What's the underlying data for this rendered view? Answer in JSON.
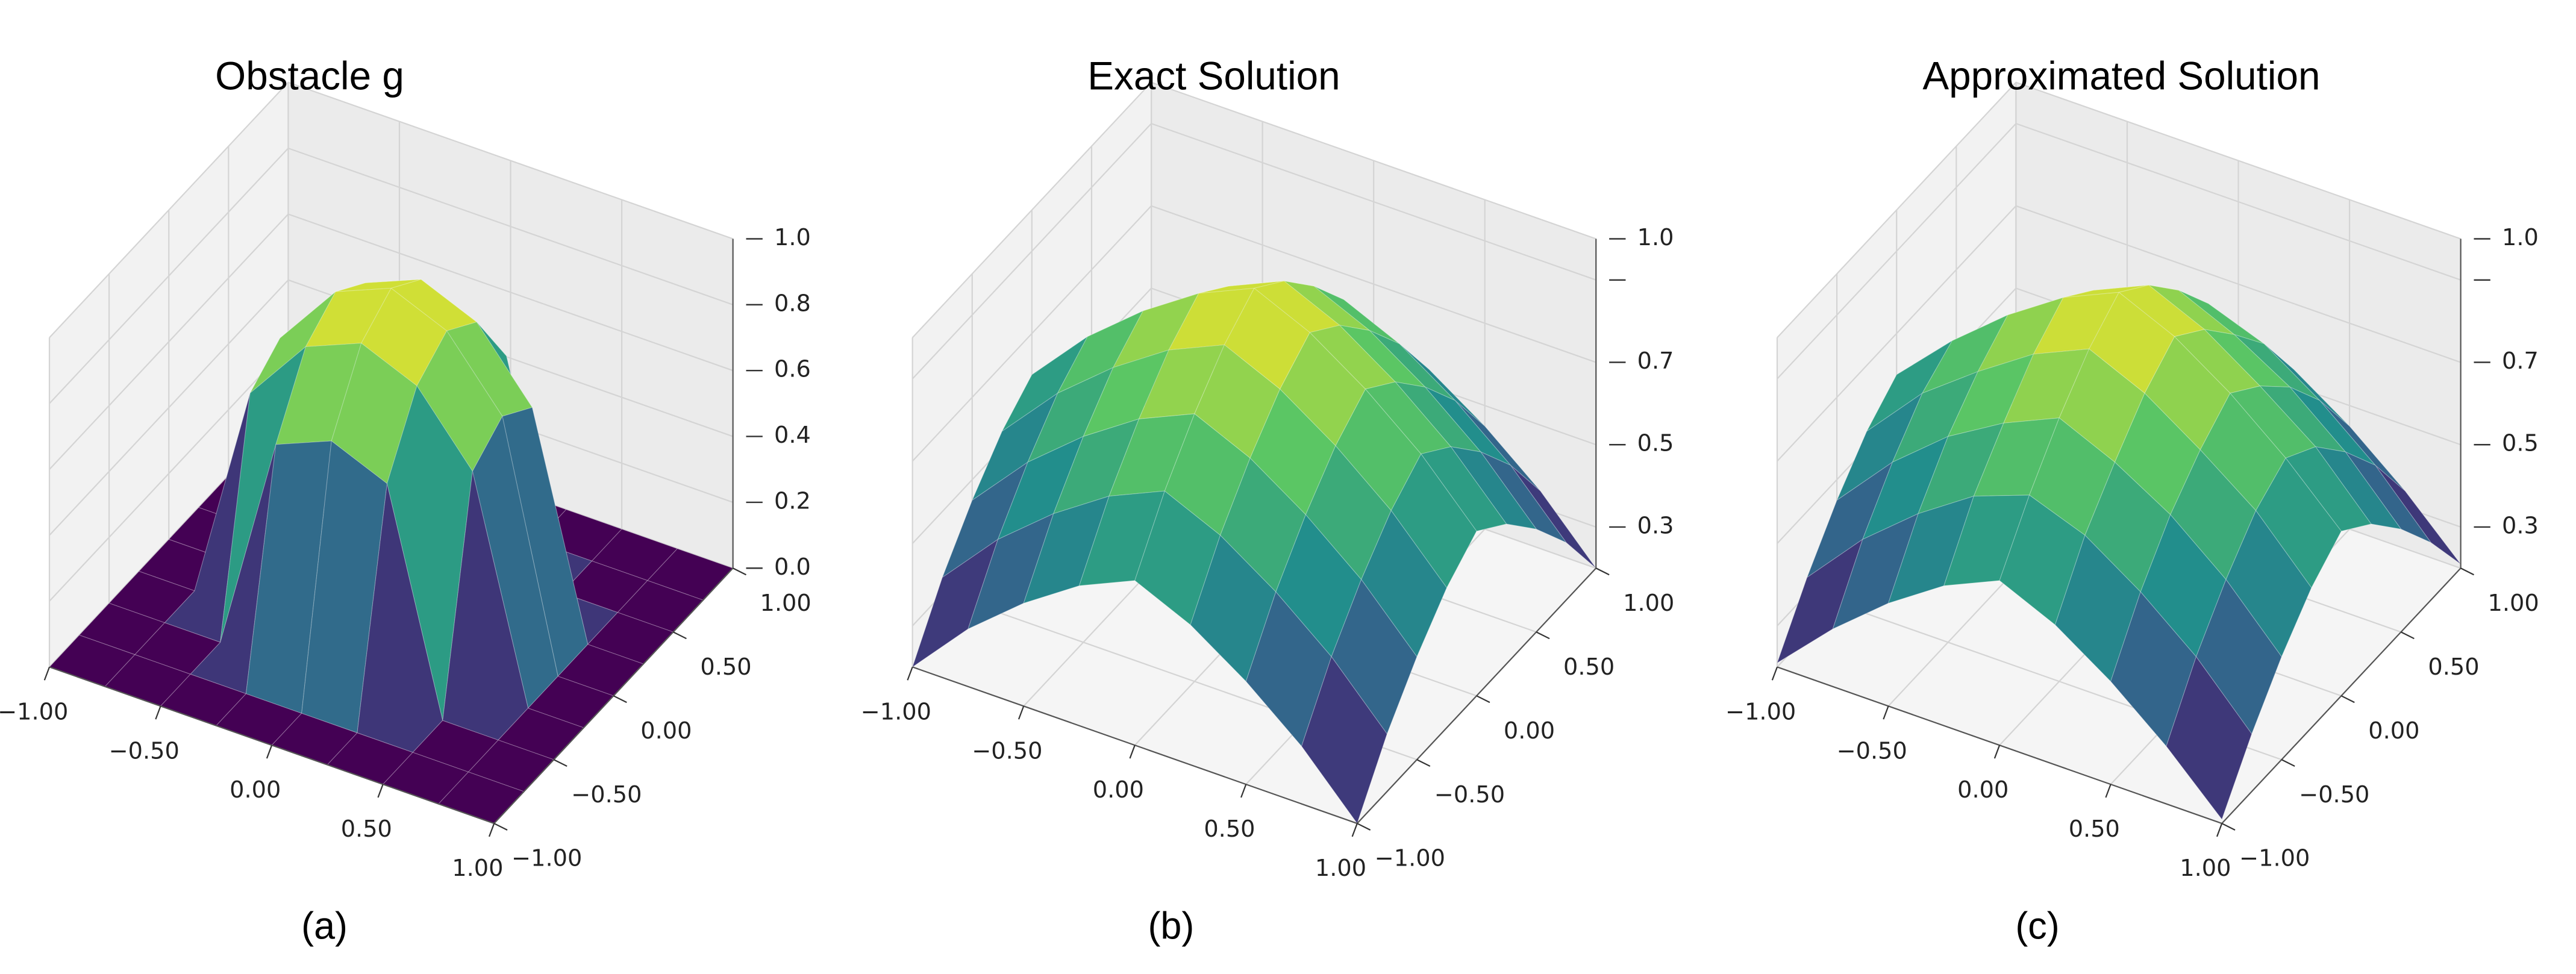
{
  "chart_data": [
    {
      "type": "surface",
      "title": "Obstacle g",
      "caption": "(a)",
      "colormap": "viridis",
      "x": [
        -1,
        -0.75,
        -0.5,
        -0.25,
        0,
        0.25,
        0.5,
        0.75,
        1
      ],
      "y": [
        -1,
        -0.75,
        -0.5,
        -0.25,
        0,
        0.25,
        0.5,
        0.75,
        1
      ],
      "z": [
        [
          0,
          0,
          0,
          0,
          0,
          0,
          0,
          0,
          0
        ],
        [
          0,
          0,
          0,
          0,
          0,
          0,
          0,
          0,
          0
        ],
        [
          0,
          0,
          0,
          0.66,
          0.73,
          0.66,
          0,
          0,
          0
        ],
        [
          0,
          0,
          0.66,
          0.86,
          0.93,
          0.86,
          0.66,
          0,
          0
        ],
        [
          0,
          0,
          0.73,
          0.93,
          1,
          0.93,
          0.73,
          0,
          0
        ],
        [
          0,
          0,
          0.66,
          0.86,
          0.93,
          0.86,
          0.66,
          0,
          0
        ],
        [
          0,
          0,
          0,
          0.66,
          0.73,
          0.66,
          0,
          0,
          0
        ],
        [
          0,
          0,
          0,
          0,
          0,
          0,
          0,
          0,
          0
        ],
        [
          0,
          0,
          0,
          0,
          0,
          0,
          0,
          0,
          0
        ]
      ],
      "xlim": [
        -1,
        1
      ],
      "ylim": [
        -1,
        1
      ],
      "zlim": [
        0,
        1
      ],
      "xticks": [
        {
          "value": -1,
          "label": "−1.00"
        },
        {
          "value": -0.5,
          "label": "−0.50"
        },
        {
          "value": 0,
          "label": "0.00"
        },
        {
          "value": 0.5,
          "label": "0.50"
        },
        {
          "value": 1,
          "label": "1.00"
        }
      ],
      "yticks": [
        {
          "value": -1,
          "label": "−1.00"
        },
        {
          "value": -0.5,
          "label": "−0.50"
        },
        {
          "value": 0,
          "label": "0.00"
        },
        {
          "value": 0.5,
          "label": "0.50"
        },
        {
          "value": 1,
          "label": "1.00"
        }
      ],
      "zticks": [
        {
          "value": 0,
          "label": "0.0"
        },
        0.2,
        0.4,
        0.6,
        0.8,
        {
          "value": 1,
          "label": "1.0"
        }
      ]
    },
    {
      "type": "surface",
      "title": "Exact Solution",
      "caption": "(b)",
      "colormap": "viridis",
      "x": [
        -1,
        -0.75,
        -0.5,
        -0.25,
        0,
        0.25,
        0.5,
        0.75,
        1
      ],
      "y": [
        -1,
        -0.75,
        -0.5,
        -0.25,
        0,
        0.25,
        0.5,
        0.75,
        1
      ],
      "z": [
        [
          0.2,
          0.34,
          0.45,
          0.54,
          0.6,
          0.54,
          0.45,
          0.34,
          0.2
        ],
        [
          0.34,
          0.48,
          0.59,
          0.68,
          0.74,
          0.68,
          0.59,
          0.48,
          0.34
        ],
        [
          0.45,
          0.59,
          0.7,
          0.79,
          0.85,
          0.79,
          0.7,
          0.59,
          0.45
        ],
        [
          0.54,
          0.68,
          0.79,
          0.88,
          0.94,
          0.88,
          0.79,
          0.68,
          0.54
        ],
        [
          0.6,
          0.74,
          0.85,
          0.94,
          1,
          0.94,
          0.85,
          0.74,
          0.6
        ],
        [
          0.54,
          0.68,
          0.79,
          0.88,
          0.94,
          0.88,
          0.79,
          0.68,
          0.54
        ],
        [
          0.45,
          0.59,
          0.7,
          0.79,
          0.85,
          0.79,
          0.7,
          0.59,
          0.45
        ],
        [
          0.34,
          0.48,
          0.59,
          0.68,
          0.74,
          0.68,
          0.59,
          0.48,
          0.34
        ],
        [
          0.2,
          0.34,
          0.45,
          0.54,
          0.6,
          0.54,
          0.45,
          0.34,
          0.2
        ]
      ],
      "xlim": [
        -1,
        1
      ],
      "ylim": [
        -1,
        1
      ],
      "zlim": [
        0.2,
        1
      ],
      "xticks": [
        {
          "value": -1,
          "label": "−1.00"
        },
        {
          "value": -0.5,
          "label": "−0.50"
        },
        {
          "value": 0,
          "label": "0.00"
        },
        {
          "value": 0.5,
          "label": "0.50"
        },
        {
          "value": 1,
          "label": "1.00"
        }
      ],
      "yticks": [
        {
          "value": -1,
          "label": "−1.00"
        },
        {
          "value": -0.5,
          "label": "−0.50"
        },
        {
          "value": 0,
          "label": "0.00"
        },
        {
          "value": 0.5,
          "label": "0.50"
        },
        {
          "value": 1,
          "label": "1.00"
        }
      ],
      "zticks": [
        0.3,
        0.5,
        0.7,
        {
          "value": 0.9,
          "label": null
        },
        {
          "value": 1,
          "label": "1.0"
        }
      ]
    },
    {
      "type": "surface",
      "title": "Approximated Solution",
      "caption": "(c)",
      "colormap": "viridis",
      "x": [
        -1,
        -0.75,
        -0.5,
        -0.25,
        0,
        0.25,
        0.5,
        0.75,
        1
      ],
      "y": [
        -1,
        -0.75,
        -0.5,
        -0.25,
        0,
        0.25,
        0.5,
        0.75,
        1
      ],
      "z": [
        [
          0.21,
          0.34,
          0.45,
          0.54,
          0.6,
          0.54,
          0.45,
          0.34,
          0.21
        ],
        [
          0.34,
          0.48,
          0.59,
          0.68,
          0.73,
          0.68,
          0.59,
          0.48,
          0.34
        ],
        [
          0.45,
          0.59,
          0.7,
          0.78,
          0.84,
          0.78,
          0.7,
          0.59,
          0.45
        ],
        [
          0.54,
          0.68,
          0.78,
          0.87,
          0.93,
          0.87,
          0.78,
          0.68,
          0.54
        ],
        [
          0.6,
          0.73,
          0.84,
          0.93,
          0.99,
          0.93,
          0.84,
          0.73,
          0.6
        ],
        [
          0.54,
          0.68,
          0.78,
          0.87,
          0.93,
          0.87,
          0.78,
          0.68,
          0.54
        ],
        [
          0.45,
          0.59,
          0.7,
          0.78,
          0.84,
          0.78,
          0.7,
          0.59,
          0.45
        ],
        [
          0.34,
          0.48,
          0.59,
          0.68,
          0.73,
          0.68,
          0.59,
          0.48,
          0.34
        ],
        [
          0.21,
          0.34,
          0.45,
          0.54,
          0.6,
          0.54,
          0.45,
          0.34,
          0.21
        ]
      ],
      "xlim": [
        -1,
        1
      ],
      "ylim": [
        -1,
        1
      ],
      "zlim": [
        0.2,
        1
      ],
      "xticks": [
        {
          "value": -1,
          "label": "−1.00"
        },
        {
          "value": -0.5,
          "label": "−0.50"
        },
        {
          "value": 0,
          "label": "0.00"
        },
        {
          "value": 0.5,
          "label": "0.50"
        },
        {
          "value": 1,
          "label": "1.00"
        }
      ],
      "yticks": [
        {
          "value": -1,
          "label": "−1.00"
        },
        {
          "value": -0.5,
          "label": "−0.50"
        },
        {
          "value": 0,
          "label": "0.00"
        },
        {
          "value": 0.5,
          "label": "0.50"
        },
        {
          "value": 1,
          "label": "1.00"
        }
      ],
      "zticks": [
        0.3,
        0.5,
        0.7,
        {
          "value": 0.9,
          "label": null
        },
        {
          "value": 1,
          "label": "1.0"
        }
      ]
    }
  ]
}
